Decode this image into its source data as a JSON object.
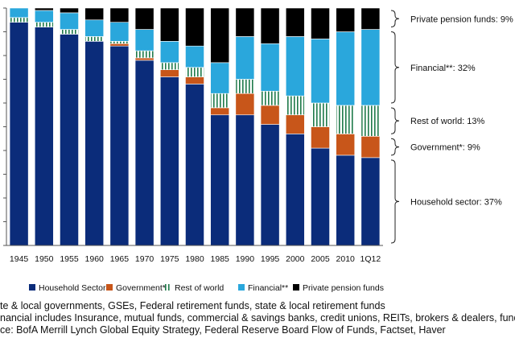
{
  "chart_data": {
    "type": "bar",
    "stacked": true,
    "percent": true,
    "categories": [
      "1945",
      "1950",
      "1955",
      "1960",
      "1965",
      "1970",
      "1975",
      "1980",
      "1985",
      "1990",
      "1995",
      "2000",
      "2005",
      "2010",
      "1Q12"
    ],
    "ylim": [
      0,
      100
    ],
    "grid": false,
    "legend_position": "bottom",
    "series": [
      {
        "name": "Household Sector",
        "color": "#0b2c7a",
        "pattern": "solid",
        "values": [
          94,
          92,
          89,
          86,
          84,
          78,
          71,
          68,
          55,
          55,
          51,
          47,
          41,
          38,
          37
        ]
      },
      {
        "name": "Government*",
        "color": "#c8561a",
        "pattern": "solid",
        "values": [
          0,
          0,
          0,
          0,
          1,
          1,
          3,
          3,
          3,
          9,
          8,
          8,
          9,
          9,
          9
        ]
      },
      {
        "name": "Rest of world",
        "color": "#1f7a4a",
        "pattern": "stripes",
        "values": [
          2,
          2,
          2,
          2,
          1,
          3,
          3,
          4,
          6,
          6,
          6,
          8,
          10,
          12,
          13
        ]
      },
      {
        "name": "Financial**",
        "color": "#2aa7dc",
        "pattern": "solid",
        "values": [
          4,
          5,
          7,
          7,
          8,
          9,
          9,
          9,
          13,
          18,
          20,
          25,
          27,
          31,
          32
        ]
      },
      {
        "name": "Private pension funds",
        "color": "#000000",
        "pattern": "solid",
        "values": [
          0,
          1,
          2,
          5,
          6,
          9,
          14,
          16,
          23,
          12,
          15,
          12,
          13,
          10,
          9
        ]
      }
    ],
    "annotations": [
      {
        "label": "Private pension funds: 9%",
        "from": 91,
        "to": 100
      },
      {
        "label": "Financial**: 32%",
        "from": 59,
        "to": 91
      },
      {
        "label": "Rest of world: 13%",
        "from": 46,
        "to": 59
      },
      {
        "label": "Government*: 9%",
        "from": 37,
        "to": 46
      },
      {
        "label": "Household sector: 37%",
        "from": 0,
        "to": 37
      }
    ]
  },
  "footnotes": [
    "te & local governments, GSEs, Federal retirement funds, state & local retirement funds",
    "nancial includes Insurance, mutual funds, commercial & savings banks, credit unions, REITs, brokers & dealers, funding",
    "ce: BofA Merrill Lynch Global Equity Strategy, Federal Reserve Board Flow of Funds, Factset, Haver"
  ]
}
